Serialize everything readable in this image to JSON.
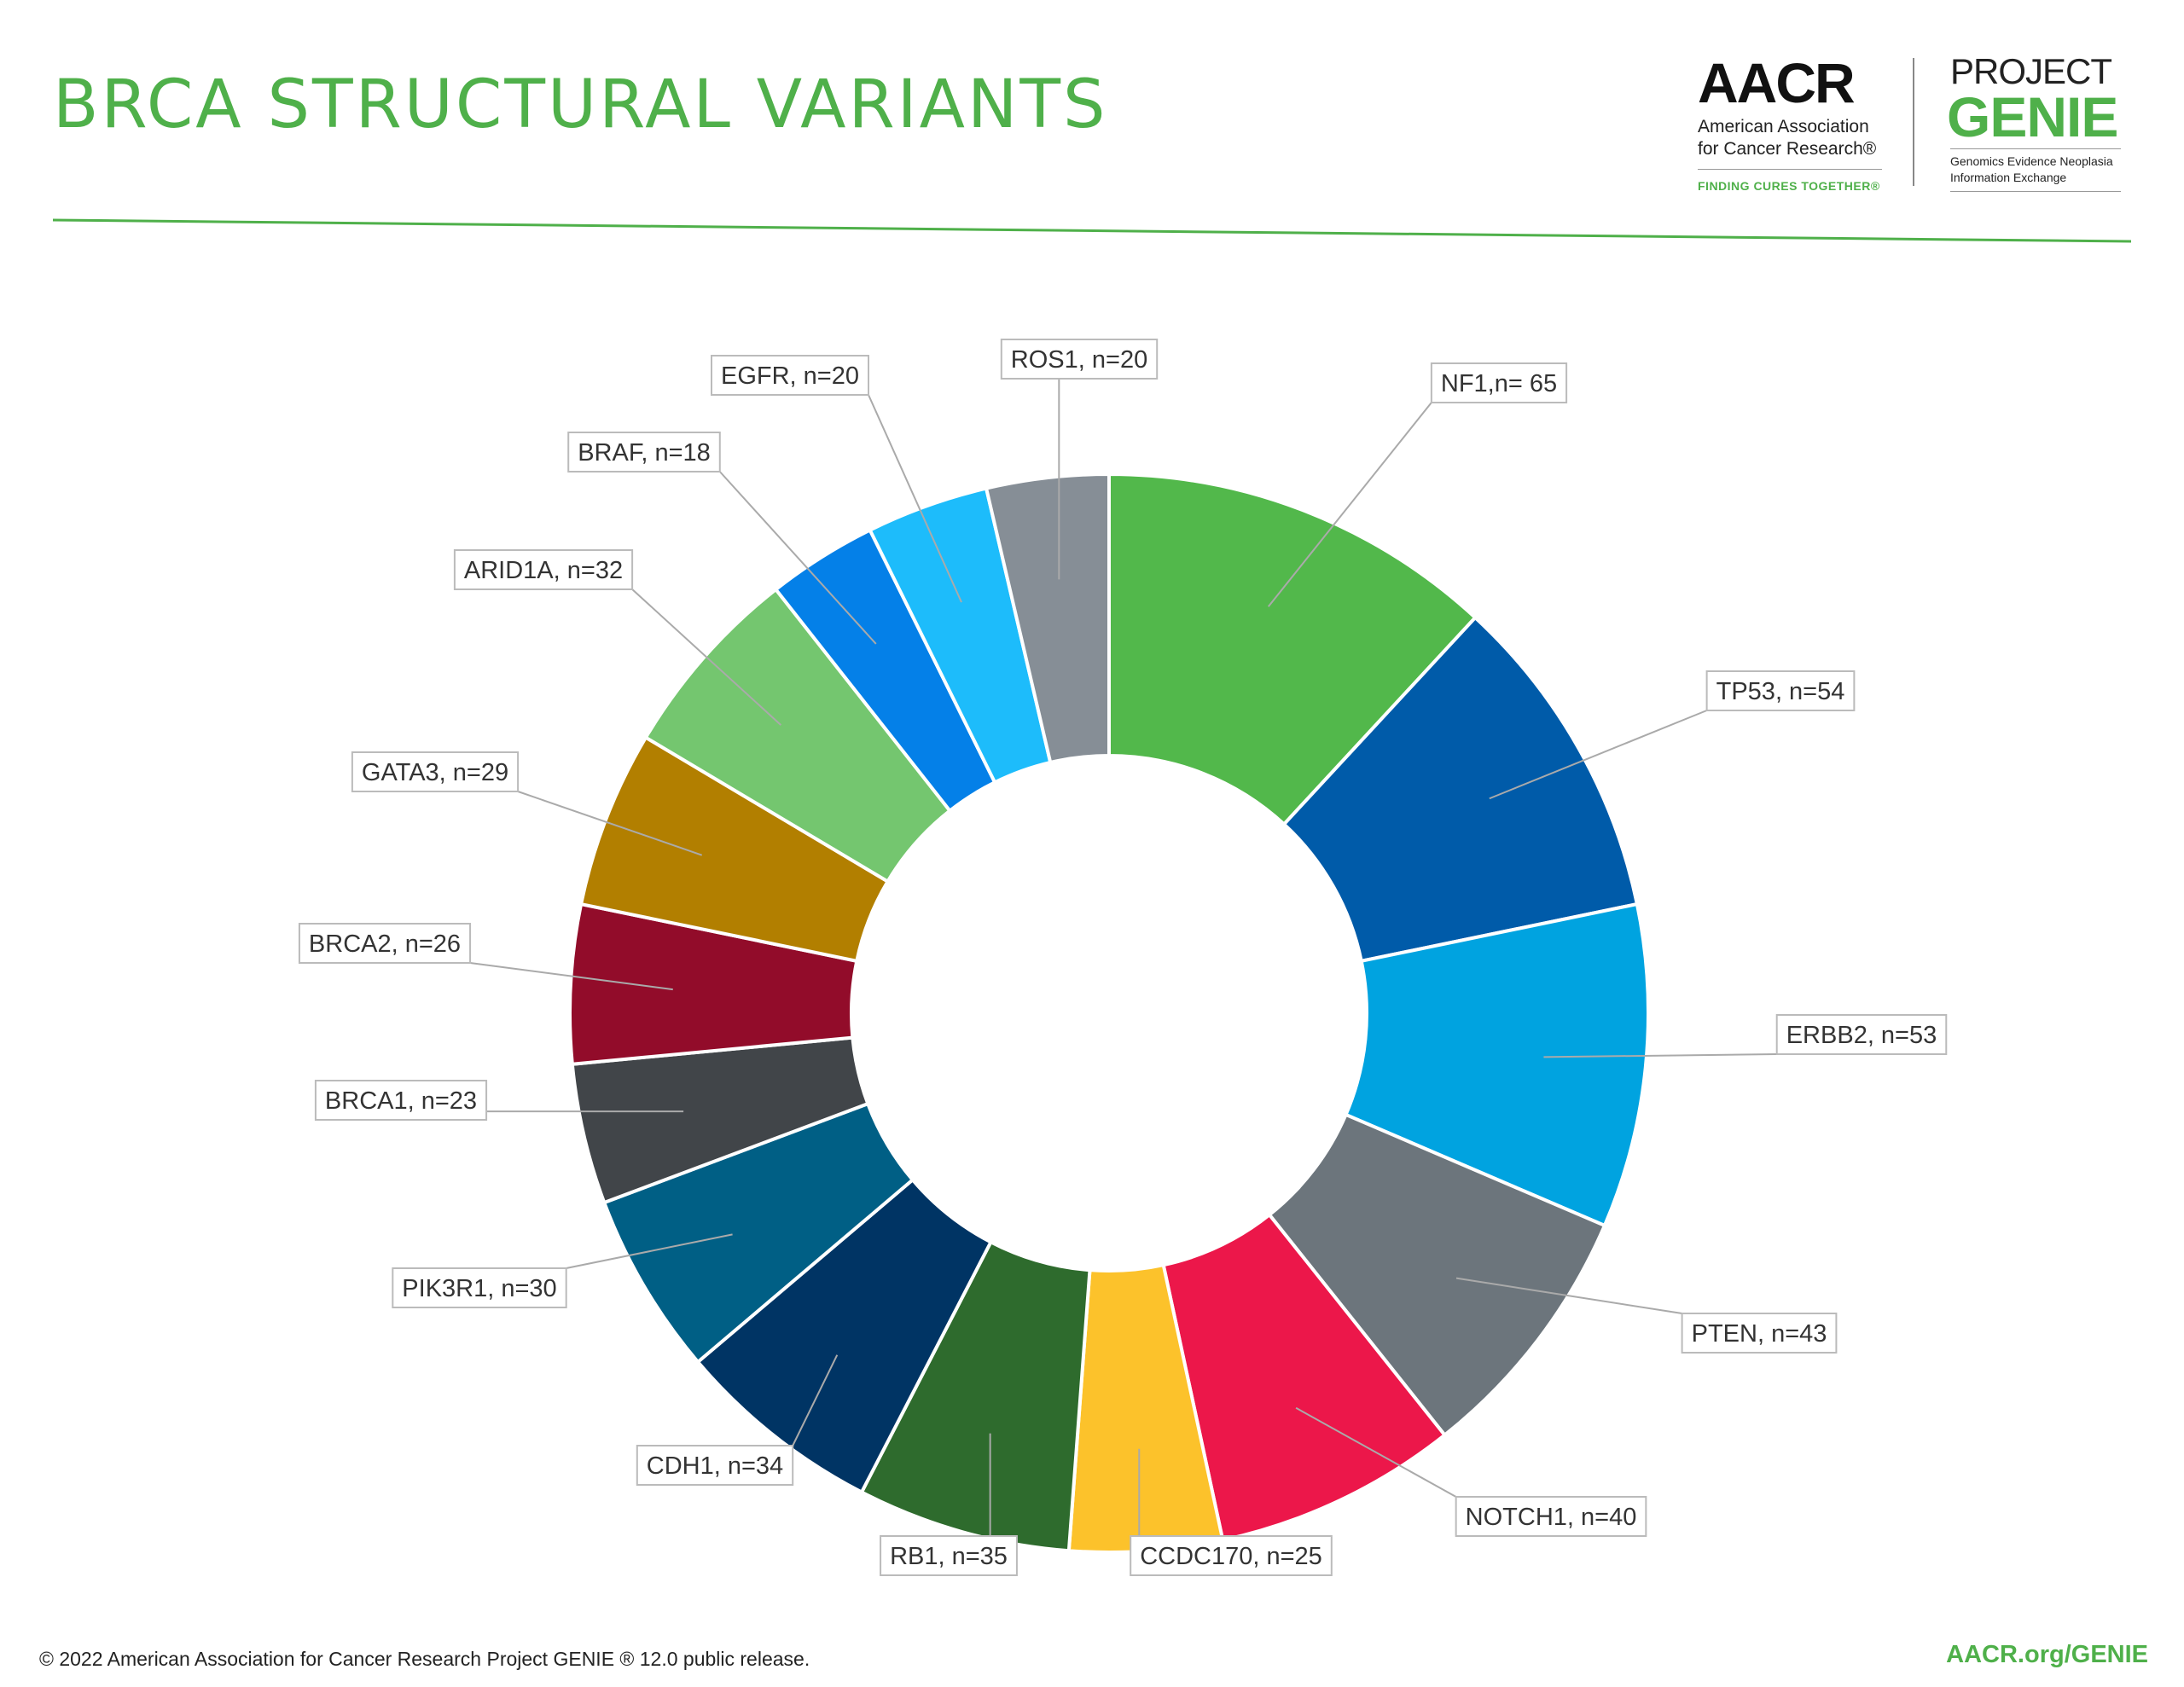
{
  "page": {
    "title": "BRCA STRUCTURAL VARIANTS",
    "footer_copyright": "© 2022 American Association for Cancer Research Project GENIE ® 12.0 public release.",
    "footer_url": "AACR.org/GENIE"
  },
  "logos": {
    "aacr_wordmark": "AACR",
    "aacr_name": "American Association\nfor Cancer Research®",
    "aacr_tagline": "FINDING CURES TOGETHER®",
    "genie_project": "PROJECT",
    "genie_word": "GENIE",
    "genie_expansion": "Genomics Evidence Neoplasia\nInformation Exchange"
  },
  "colors": {
    "brand_green": "#4fb04a",
    "header_rule": "#4fb04a"
  },
  "chart_data": {
    "type": "pie",
    "donut": true,
    "title": "BRCA STRUCTURAL VARIANTS",
    "slices": [
      {
        "gene": "NF1",
        "value": 65,
        "label": "NF1,n= 65",
        "color": "#52b84b"
      },
      {
        "gene": "TP53",
        "value": 54,
        "label": "TP53, n=54",
        "color": "#005ba9"
      },
      {
        "gene": "ERBB2",
        "value": 53,
        "label": "ERBB2, n=53",
        "color": "#00a3e0"
      },
      {
        "gene": "PTEN",
        "value": 43,
        "label": "PTEN, n=43",
        "color": "#6c757c"
      },
      {
        "gene": "NOTCH1",
        "value": 40,
        "label": "NOTCH1, n=40",
        "color": "#ec174a"
      },
      {
        "gene": "CCDC170",
        "value": 25,
        "label": "CCDC170, n=25",
        "color": "#fcc22b"
      },
      {
        "gene": "RB1",
        "value": 35,
        "label": "RB1, n=35",
        "color": "#2e6b2d"
      },
      {
        "gene": "CDH1",
        "value": 34,
        "label": "CDH1, n=34",
        "color": "#003464"
      },
      {
        "gene": "PIK3R1",
        "value": 30,
        "label": "PIK3R1, n=30",
        "color": "#005f85"
      },
      {
        "gene": "BRCA1",
        "value": 23,
        "label": "BRCA1, n=23",
        "color": "#414549"
      },
      {
        "gene": "BRCA2",
        "value": 26,
        "label": "BRCA2, n=26",
        "color": "#920c2a"
      },
      {
        "gene": "GATA3",
        "value": 29,
        "label": "GATA3, n=29",
        "color": "#b27f00"
      },
      {
        "gene": "ARID1A",
        "value": 32,
        "label": "ARID1A, n=32",
        "color": "#74c66f"
      },
      {
        "gene": "BRAF",
        "value": 18,
        "label": "BRAF, n=18",
        "color": "#0480e8"
      },
      {
        "gene": "EGFR",
        "value": 20,
        "label": "EGFR, n=20",
        "color": "#1dbcfb"
      },
      {
        "gene": "ROS1",
        "value": 20,
        "label": "ROS1, n=20",
        "color": "#868e96"
      }
    ]
  }
}
